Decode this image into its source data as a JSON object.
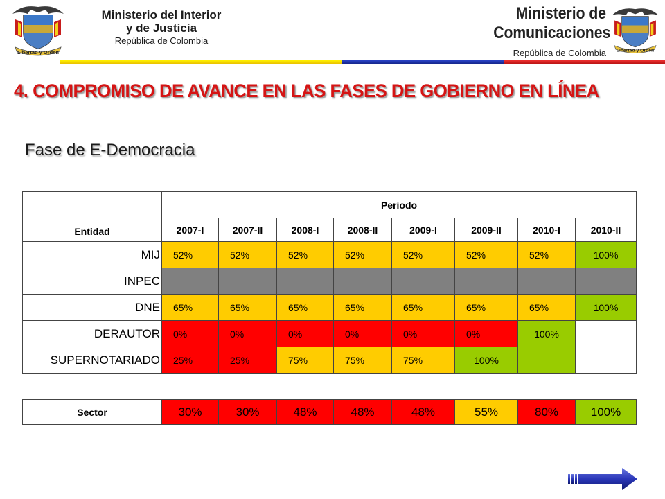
{
  "header": {
    "left_org_line1": "Ministerio del Interior",
    "left_org_line2": "y de Justicia",
    "left_org_line3": "República de Colombia",
    "right_org_line1": "Ministerio de",
    "right_org_line2": "Comunicaciones",
    "right_org_line3": "República de Colombia",
    "crest_motto": "Libertad y Orden"
  },
  "title": "4. COMPROMISO DE AVANCE EN LAS FASES DE GOBIERNO EN LÍNEA",
  "subtitle": "Fase de E-Democracia",
  "table": {
    "entity_header": "Entidad",
    "period_header": "Periodo",
    "periods": [
      "2007-I",
      "2007-II",
      "2008-I",
      "2008-II",
      "2009-I",
      "2009-II",
      "2010-I",
      "2010-II"
    ],
    "rows": [
      {
        "entity": "MIJ",
        "cells": [
          {
            "v": "52%",
            "c": "yel"
          },
          {
            "v": "52%",
            "c": "yel"
          },
          {
            "v": "52%",
            "c": "yel"
          },
          {
            "v": "52%",
            "c": "yel"
          },
          {
            "v": "52%",
            "c": "yel"
          },
          {
            "v": "52%",
            "c": "yel"
          },
          {
            "v": "52%",
            "c": "yel"
          },
          {
            "v": "100%",
            "c": "grn"
          }
        ]
      },
      {
        "entity": "INPEC",
        "cells": [
          {
            "v": "",
            "c": "gry"
          },
          {
            "v": "",
            "c": "gry"
          },
          {
            "v": "",
            "c": "gry"
          },
          {
            "v": "",
            "c": "gry"
          },
          {
            "v": "",
            "c": "gry"
          },
          {
            "v": "",
            "c": "gry"
          },
          {
            "v": "",
            "c": "gry"
          },
          {
            "v": "",
            "c": "gry"
          }
        ]
      },
      {
        "entity": "DNE",
        "cells": [
          {
            "v": "65%",
            "c": "yel"
          },
          {
            "v": "65%",
            "c": "yel"
          },
          {
            "v": "65%",
            "c": "yel"
          },
          {
            "v": "65%",
            "c": "yel"
          },
          {
            "v": "65%",
            "c": "yel"
          },
          {
            "v": "65%",
            "c": "yel"
          },
          {
            "v": "65%",
            "c": "yel"
          },
          {
            "v": "100%",
            "c": "grn"
          }
        ]
      },
      {
        "entity": "DERAUTOR",
        "cells": [
          {
            "v": "0%",
            "c": "red"
          },
          {
            "v": "0%",
            "c": "red"
          },
          {
            "v": "0%",
            "c": "red"
          },
          {
            "v": "0%",
            "c": "red"
          },
          {
            "v": "0%",
            "c": "red"
          },
          {
            "v": "0%",
            "c": "red"
          },
          {
            "v": "100%",
            "c": "grn"
          },
          {
            "v": "",
            "c": "wht"
          }
        ]
      },
      {
        "entity": "SUPERNOTARIADO",
        "cells": [
          {
            "v": "25%",
            "c": "red"
          },
          {
            "v": "25%",
            "c": "red"
          },
          {
            "v": "75%",
            "c": "yel"
          },
          {
            "v": "75%",
            "c": "yel"
          },
          {
            "v": "75%",
            "c": "yel"
          },
          {
            "v": "100%",
            "c": "grn"
          },
          {
            "v": "",
            "c": "grn"
          },
          {
            "v": "",
            "c": "wht"
          }
        ]
      }
    ]
  },
  "sector": {
    "label": "Sector",
    "cells": [
      {
        "v": "30%",
        "c": "red"
      },
      {
        "v": "30%",
        "c": "red"
      },
      {
        "v": "48%",
        "c": "red"
      },
      {
        "v": "48%",
        "c": "red"
      },
      {
        "v": "48%",
        "c": "red"
      },
      {
        "v": "55%",
        "c": "yel"
      },
      {
        "v": "80%",
        "c": "red"
      },
      {
        "v": "100%",
        "c": "grn"
      }
    ]
  },
  "colors": {
    "yellow": "#ffcc00",
    "red": "#ff0000",
    "green": "#99cc00",
    "gray": "#808080",
    "title_red": "#d51414",
    "stripe_yellow": "#ffe000",
    "stripe_blue": "#1a2f9e",
    "stripe_red": "#d61a1a"
  },
  "icons": {
    "left_crest": "colombia-coat-of-arms-icon",
    "right_crest": "colombia-coat-of-arms-icon",
    "next": "next-arrow-icon"
  }
}
